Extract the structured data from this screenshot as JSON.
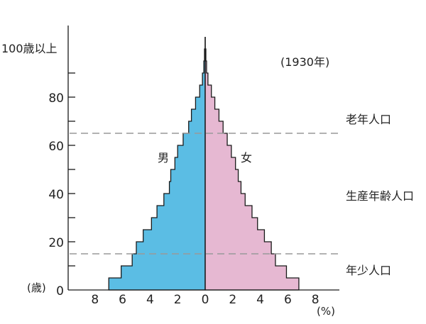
{
  "chart_data": {
    "type": "population-pyramid",
    "annotation": "(1930年)",
    "y_axis": {
      "unit_label": "(歳)",
      "tick_values": [
        0,
        20,
        40,
        60,
        80
      ],
      "tick_labels": [
        "0",
        "20",
        "40",
        "60",
        "80"
      ],
      "top_label": "100歳以上",
      "range": [
        0,
        100
      ]
    },
    "x_axis": {
      "unit_label": "(%)",
      "male_ticks": [
        "8",
        "6",
        "4",
        "2"
      ],
      "center_label": "0",
      "female_ticks": [
        "2",
        "4",
        "6",
        "8"
      ],
      "range_percent": [
        8,
        8
      ]
    },
    "series": [
      {
        "name": "男",
        "color": "#5bbde4"
      },
      {
        "name": "女",
        "color": "#e6b8d2"
      }
    ],
    "age_groups": [
      "0-4",
      "5-9",
      "10-14",
      "15-19",
      "20-24",
      "25-29",
      "30-34",
      "35-39",
      "40-44",
      "45-49",
      "50-54",
      "55-59",
      "60-64",
      "65-69",
      "70-74",
      "75-79",
      "80-84",
      "85-89",
      "90-94",
      "95-99",
      "100+"
    ],
    "male_percent": [
      7.0,
      6.1,
      5.3,
      5.0,
      4.5,
      3.9,
      3.5,
      3.0,
      2.6,
      2.5,
      2.2,
      2.0,
      1.6,
      1.2,
      1.0,
      0.7,
      0.4,
      0.2,
      0.1,
      0.05,
      0.0
    ],
    "female_percent": [
      6.8,
      5.9,
      5.1,
      4.8,
      4.3,
      3.8,
      3.4,
      2.9,
      2.6,
      2.4,
      2.2,
      1.9,
      1.6,
      1.3,
      1.0,
      0.7,
      0.45,
      0.2,
      0.1,
      0.05,
      0.0
    ],
    "reference_lines": [
      {
        "age": 15,
        "label": "年少人口"
      },
      {
        "age": 65,
        "label": "老年人口"
      }
    ],
    "region_labels": [
      "老年人口",
      "生産年齢人口",
      "年少人口"
    ]
  }
}
